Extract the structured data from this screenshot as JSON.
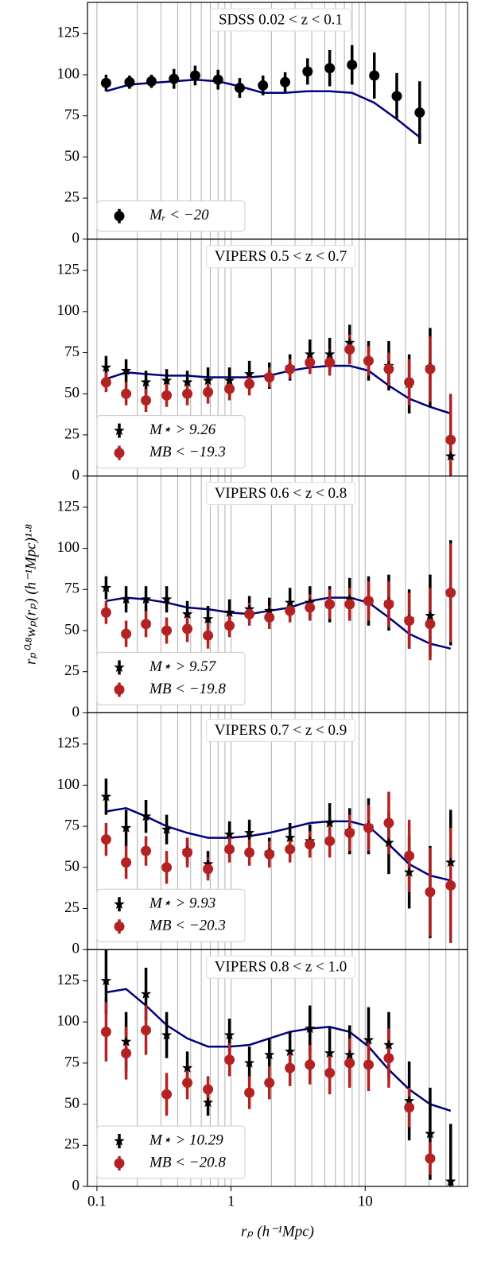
{
  "chart_data": [
    {
      "type": "errorbar",
      "title": "SDSS 0.02 < z < 0.1",
      "x": [
        0.117,
        0.175,
        0.255,
        0.375,
        0.54,
        0.8,
        1.16,
        1.73,
        2.53,
        3.72,
        5.44,
        7.98,
        11.7,
        17.2,
        25.5
      ],
      "series": [
        {
          "name": "Mᵣ < −20",
          "color": "#000000",
          "marker": "circle",
          "values": [
            95,
            95.5,
            96,
            97.5,
            99.5,
            97,
            92,
            93.5,
            95.5,
            102,
            104,
            106,
            99.5,
            87,
            77
          ],
          "errors": [
            5,
            4,
            4,
            6,
            6,
            6,
            6,
            6,
            6,
            8,
            11,
            12,
            14,
            14,
            19
          ]
        }
      ],
      "model": {
        "color": "#000080",
        "values": [
          90,
          94,
          95,
          96,
          97,
          96,
          93,
          89,
          89,
          90,
          90,
          89,
          83,
          73,
          62
        ]
      },
      "xlim": [
        0.085,
        58
      ],
      "xticks": [
        0.1,
        1,
        10
      ],
      "xminor": [
        0.2,
        0.3,
        0.4,
        0.5,
        0.6,
        0.7,
        0.8,
        0.9,
        2,
        3,
        4,
        5,
        6,
        7,
        8,
        9,
        20,
        30,
        40,
        50
      ],
      "ylim": [
        0,
        144
      ],
      "yticks": [
        0,
        25,
        50,
        75,
        100,
        125
      ],
      "log_x": true
    },
    {
      "type": "errorbar",
      "title": "VIPERS 0.5 < z < 0.7",
      "x": [
        0.117,
        0.165,
        0.232,
        0.331,
        0.472,
        0.673,
        0.973,
        1.37,
        1.93,
        2.75,
        3.87,
        5.44,
        7.66,
        10.6,
        15.0,
        21.3,
        30.5,
        43.4
      ],
      "series": [
        {
          "name": "M⋆ > 9.26",
          "color": "#000000",
          "marker": "star",
          "values": [
            66,
            64,
            57,
            58,
            57,
            58,
            58,
            62,
            61,
            66,
            74,
            74,
            81,
            70,
            67,
            56,
            66,
            12
          ],
          "errors": [
            7,
            7,
            7,
            7,
            7,
            8,
            8,
            8,
            8,
            8,
            9,
            10,
            11,
            12,
            15,
            18,
            24,
            15
          ]
        },
        {
          "name": "MB < −19.3",
          "color": "#b22222",
          "marker": "circle",
          "values": [
            57,
            50,
            46,
            49,
            50,
            51,
            53,
            56,
            60,
            65,
            69,
            69,
            77,
            70,
            65,
            57,
            65,
            22
          ],
          "errors": [
            6,
            7,
            7,
            7,
            7,
            7,
            7,
            7,
            6,
            6,
            7,
            8,
            9,
            9,
            10,
            14,
            20,
            28
          ]
        }
      ],
      "model": {
        "color": "#000080",
        "values": [
          59,
          63,
          62,
          61,
          61,
          60,
          60,
          60,
          61,
          64,
          66,
          67,
          67,
          64,
          55,
          47,
          42,
          38
        ]
      },
      "xlim": [
        0.085,
        58
      ],
      "xticks": [
        0.1,
        1,
        10
      ],
      "ylim": [
        0,
        144
      ],
      "yticks": [
        0,
        25,
        50,
        75,
        100,
        125
      ],
      "log_x": true
    },
    {
      "type": "errorbar",
      "title": "VIPERS 0.6 < z < 0.8",
      "ylabel": "rₚ⁰·⁸wₚ(rₚ)   (h⁻¹Mpc)¹·⁸",
      "x": [
        0.117,
        0.165,
        0.232,
        0.331,
        0.472,
        0.673,
        0.973,
        1.37,
        1.93,
        2.75,
        3.87,
        5.44,
        7.66,
        10.6,
        15.0,
        21.3,
        30.5,
        43.4
      ],
      "series": [
        {
          "name": "M⋆ > 9.57",
          "color": "#000000",
          "marker": "star",
          "values": [
            76,
            69,
            69,
            69,
            60,
            57,
            61,
            63,
            62,
            67,
            67,
            66,
            69,
            68,
            67,
            57,
            59,
            73
          ],
          "errors": [
            7,
            8,
            8,
            8,
            8,
            8,
            8,
            8,
            8,
            9,
            10,
            11,
            13,
            15,
            17,
            18,
            25,
            32
          ]
        },
        {
          "name": "MB < −19.8",
          "color": "#b22222",
          "marker": "circle",
          "values": [
            61,
            48,
            54,
            50,
            51,
            47,
            53,
            60,
            58,
            62,
            64,
            66,
            66,
            68,
            66,
            56,
            54,
            73
          ],
          "errors": [
            7,
            8,
            8,
            8,
            8,
            8,
            7,
            7,
            7,
            7,
            8,
            9,
            10,
            12,
            14,
            17,
            22,
            30
          ]
        }
      ],
      "model": {
        "color": "#000080",
        "values": [
          68,
          70,
          69,
          67,
          64,
          63,
          61,
          60,
          62,
          64,
          68,
          70,
          70,
          67,
          58,
          48,
          42,
          39
        ]
      },
      "xlim": [
        0.085,
        58
      ],
      "xticks": [
        0.1,
        1,
        10
      ],
      "ylim": [
        0,
        144
      ],
      "yticks": [
        0,
        25,
        50,
        75,
        100,
        125
      ],
      "log_x": true
    },
    {
      "type": "errorbar",
      "title": "VIPERS 0.7 < z < 0.9",
      "x": [
        0.117,
        0.165,
        0.232,
        0.331,
        0.472,
        0.673,
        0.973,
        1.37,
        1.93,
        2.75,
        3.87,
        5.44,
        7.66,
        10.6,
        15.0,
        21.3,
        30.5,
        43.4
      ],
      "series": [
        {
          "name": "M⋆ > 9.93",
          "color": "#000000",
          "marker": "star",
          "values": [
            93,
            74,
            81,
            73,
            60,
            52,
            70,
            71,
            59,
            68,
            66,
            77,
            72,
            75,
            65,
            47,
            35,
            53
          ],
          "errors": [
            11,
            11,
            10,
            9,
            8,
            8,
            8,
            8,
            9,
            9,
            10,
            12,
            14,
            17,
            19,
            22,
            28,
            32
          ]
        },
        {
          "name": "MB < −20.3",
          "color": "#b22222",
          "marker": "circle",
          "values": [
            67,
            53,
            60,
            50,
            59,
            49,
            61,
            59,
            58,
            61,
            64,
            66,
            71,
            74,
            77,
            57,
            35,
            39
          ],
          "errors": [
            10,
            10,
            9,
            10,
            9,
            7,
            8,
            8,
            8,
            8,
            8,
            10,
            11,
            14,
            19,
            22,
            27,
            35
          ]
        }
      ],
      "model": {
        "color": "#000080",
        "values": [
          84,
          86,
          81,
          75,
          71,
          68,
          68,
          69,
          71,
          74,
          77,
          78,
          78,
          75,
          64,
          52,
          45,
          42
        ]
      },
      "xlim": [
        0.085,
        58
      ],
      "xticks": [
        0.1,
        1,
        10
      ],
      "ylim": [
        0,
        144
      ],
      "yticks": [
        0,
        25,
        50,
        75,
        100,
        125
      ],
      "log_x": true
    },
    {
      "type": "errorbar",
      "title": "VIPERS 0.8 < z < 1.0",
      "xlabel": "rₚ  (h⁻¹Mpc)",
      "x": [
        0.117,
        0.165,
        0.232,
        0.331,
        0.472,
        0.673,
        0.973,
        1.37,
        1.93,
        2.75,
        3.87,
        5.44,
        7.66,
        10.6,
        15.0,
        21.3,
        30.5,
        43.4
      ],
      "series": [
        {
          "name": "M⋆ > 10.29",
          "color": "#000000",
          "marker": "star",
          "values": [
            125,
            88,
            117,
            92,
            72,
            51,
            92,
            75,
            80,
            82,
            96,
            81,
            80,
            89,
            86,
            52,
            32,
            3
          ],
          "errors": [
            20,
            18,
            16,
            14,
            10,
            8,
            10,
            10,
            10,
            12,
            14,
            16,
            18,
            20,
            20,
            24,
            28,
            35
          ]
        },
        {
          "name": "MB < −20.8",
          "color": "#b22222",
          "marker": "circle",
          "values": [
            94,
            81,
            95,
            56,
            63,
            59,
            77,
            57,
            63,
            72,
            74,
            69,
            75,
            74,
            78,
            48,
            17,
            null
          ],
          "errors": [
            18,
            16,
            15,
            13,
            10,
            8,
            10,
            10,
            10,
            11,
            12,
            13,
            15,
            16,
            18,
            12,
            10,
            null
          ]
        }
      ],
      "model": {
        "color": "#000080",
        "values": [
          118,
          120,
          110,
          98,
          90,
          85,
          85,
          86,
          90,
          94,
          96,
          97,
          94,
          85,
          71,
          59,
          50,
          46
        ]
      },
      "xlim": [
        0.085,
        58
      ],
      "xticks": [
        {
          "value": 0.1,
          "label": "0.1"
        },
        1,
        10
      ],
      "ylim": [
        0,
        144
      ],
      "yticks": [
        0,
        25,
        50,
        75,
        100,
        125
      ],
      "log_x": true
    }
  ]
}
